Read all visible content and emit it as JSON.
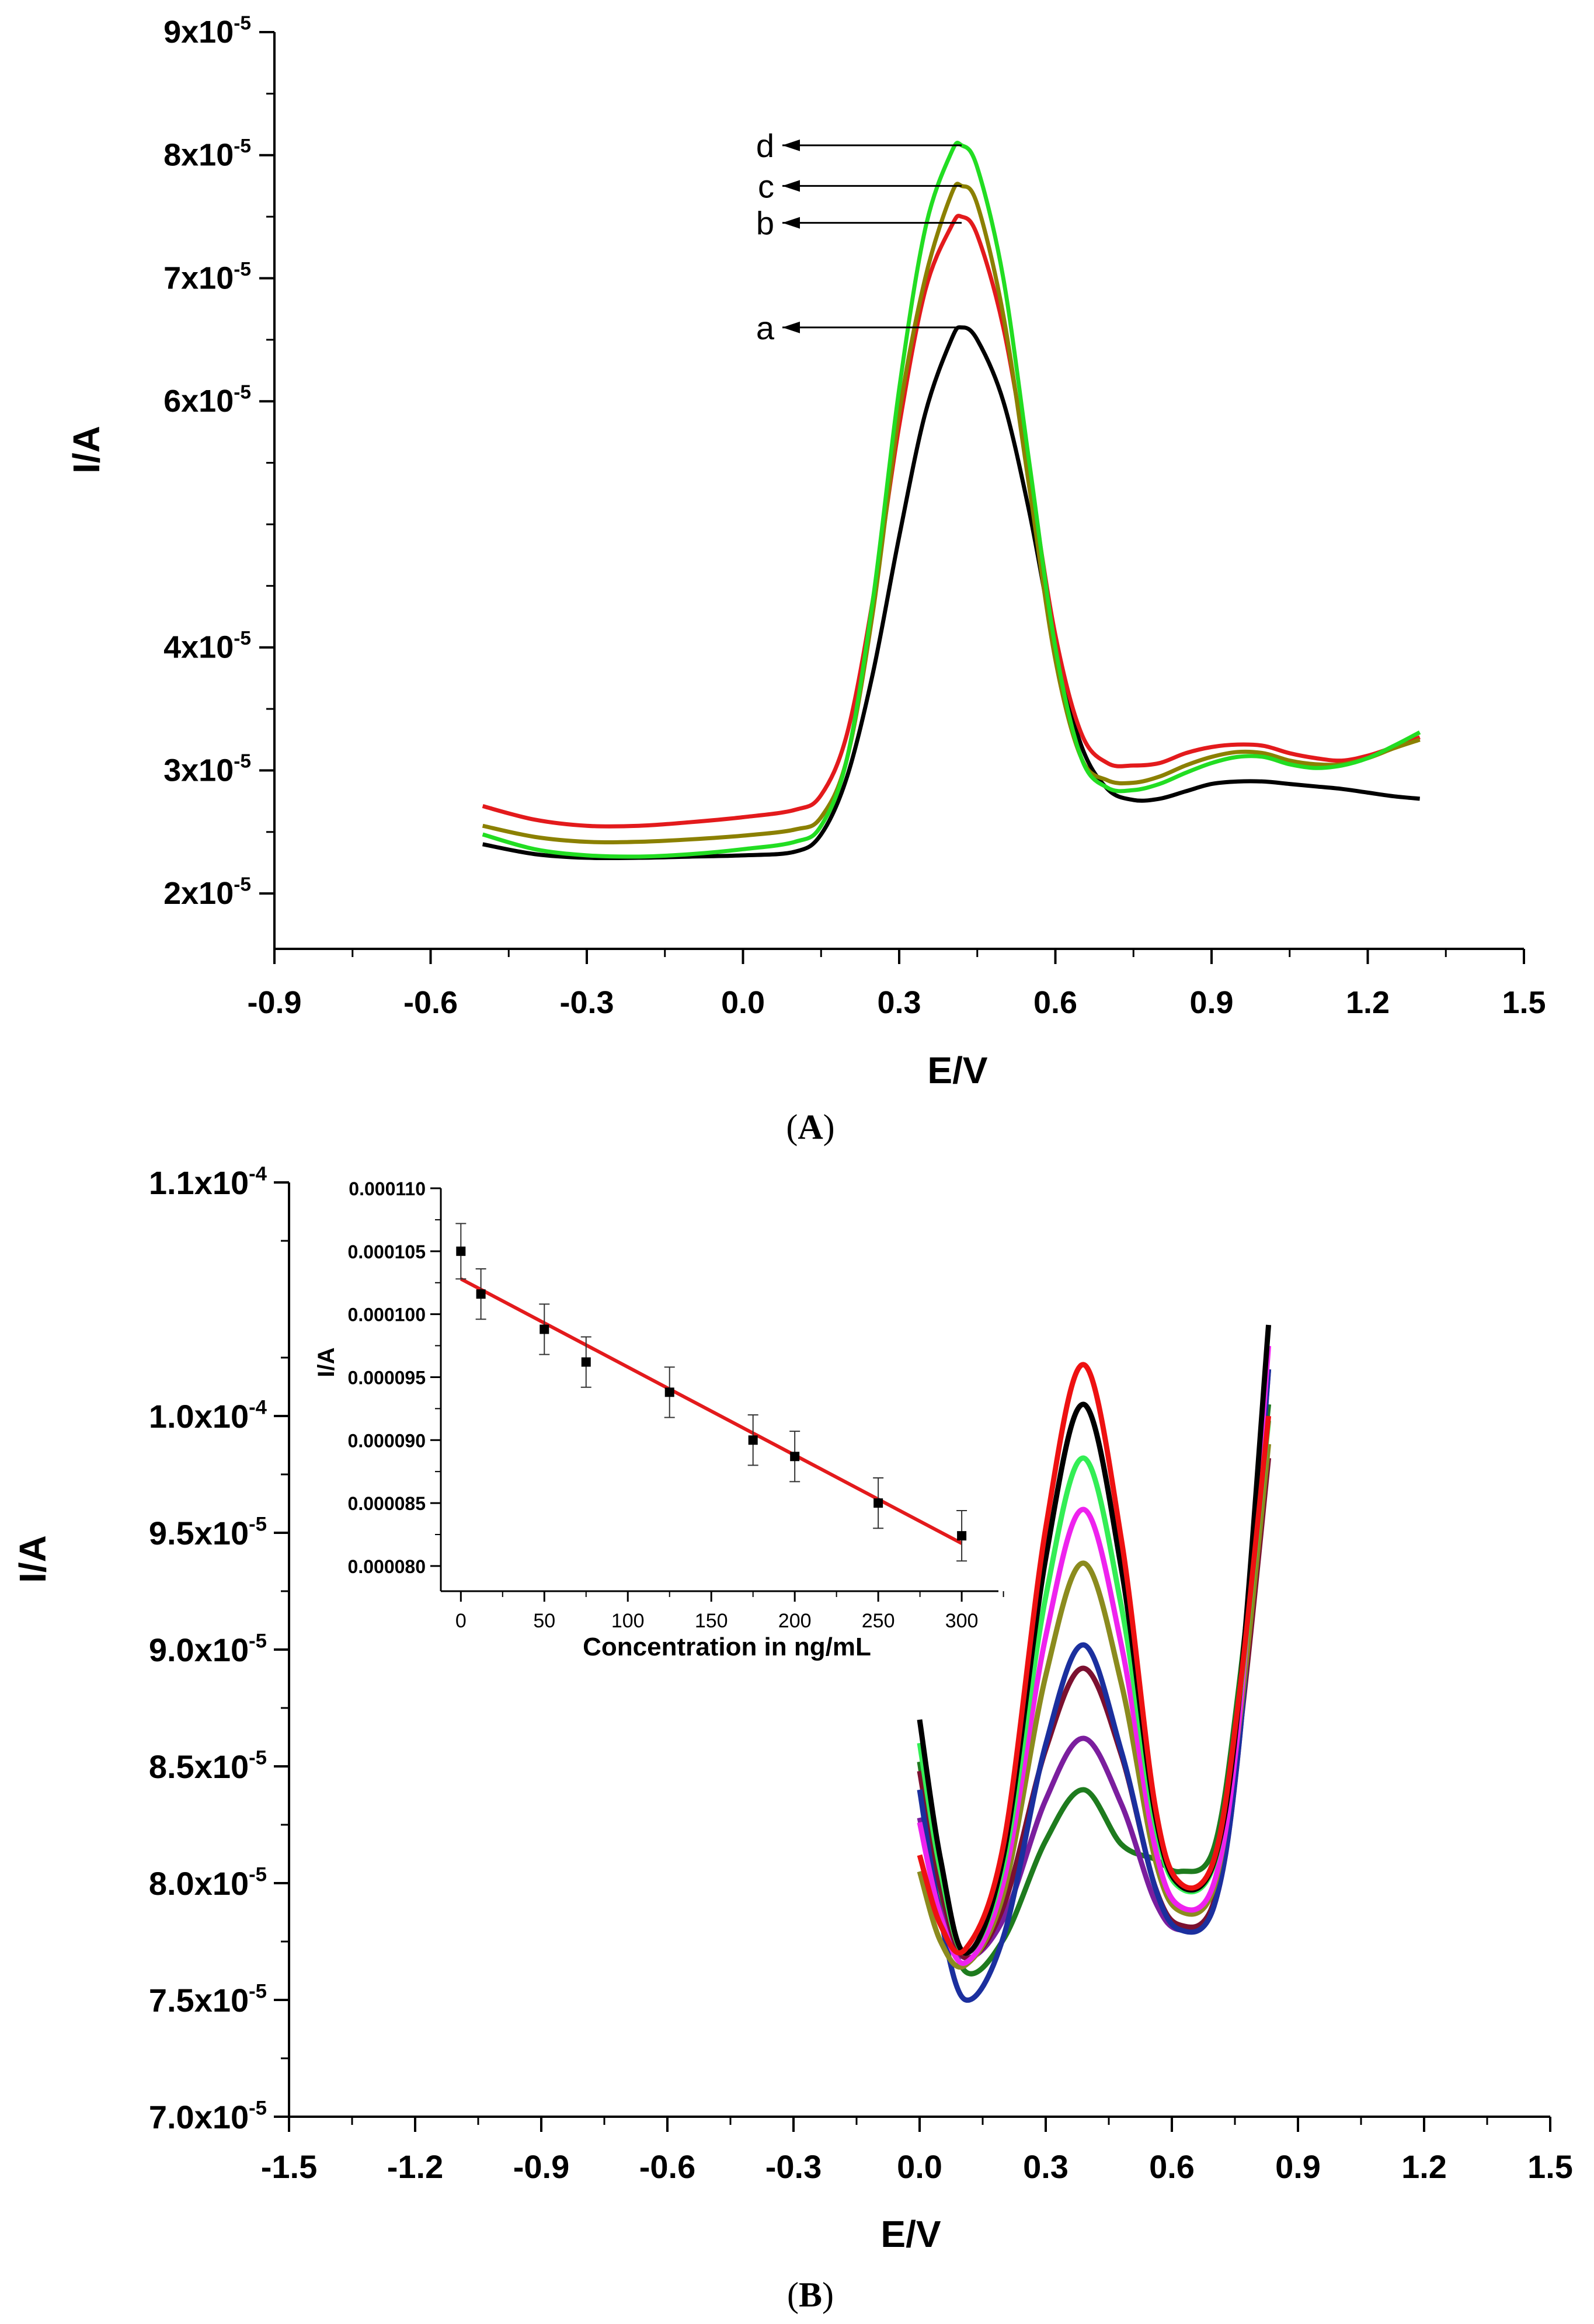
{
  "chart_data": [
    {
      "type": "line",
      "panel_label": "A",
      "xlabel": "E/V",
      "ylabel": "I/A",
      "xlim": [
        -0.9,
        1.5
      ],
      "ylim": [
        1.55e-05,
        9e-05
      ],
      "x_ticks": [
        -0.9,
        -0.6,
        -0.3,
        0.0,
        0.3,
        0.6,
        0.9,
        1.2,
        1.5
      ],
      "x_tick_labels": [
        "-0.9",
        "-0.6",
        "-0.3",
        "0.0",
        "0.3",
        "0.6",
        "0.9",
        "1.2",
        "1.5"
      ],
      "y_ticks": [
        2e-05,
        3e-05,
        4e-05,
        6e-05,
        7e-05,
        8e-05,
        9e-05
      ],
      "y_tick_labels": [
        {
          "mant": "2x10",
          "exp": "-5"
        },
        {
          "mant": "3x10",
          "exp": "-5"
        },
        {
          "mant": "4x10",
          "exp": "-5"
        },
        {
          "mant": "6x10",
          "exp": "-5"
        },
        {
          "mant": "7x10",
          "exp": "-5"
        },
        {
          "mant": "8x10",
          "exp": "-5"
        },
        {
          "mant": "9x10",
          "exp": "-5"
        }
      ],
      "series": [
        {
          "name": "a",
          "color": "#000000",
          "x": [
            -0.5,
            -0.4,
            -0.3,
            -0.2,
            -0.1,
            0.0,
            0.1,
            0.15,
            0.2,
            0.25,
            0.3,
            0.35,
            0.4,
            0.42,
            0.45,
            0.5,
            0.55,
            0.6,
            0.65,
            0.7,
            0.75,
            0.8,
            0.85,
            0.9,
            0.95,
            1.0,
            1.05,
            1.1,
            1.15,
            1.2,
            1.25,
            1.3
          ],
          "y": [
            2.4e-05,
            2.32e-05,
            2.29e-05,
            2.29e-05,
            2.3e-05,
            2.31e-05,
            2.34e-05,
            2.48e-05,
            2.95e-05,
            3.8e-05,
            4.9e-05,
            5.9e-05,
            6.5e-05,
            6.6e-05,
            6.5e-05,
            6e-05,
            5.1e-05,
            4e-05,
            3.2e-05,
            2.85e-05,
            2.76e-05,
            2.77e-05,
            2.83e-05,
            2.89e-05,
            2.91e-05,
            2.91e-05,
            2.89e-05,
            2.87e-05,
            2.85e-05,
            2.82e-05,
            2.79e-05,
            2.77e-05
          ]
        },
        {
          "name": "b",
          "color": "#e31a1c",
          "x": [
            -0.5,
            -0.4,
            -0.3,
            -0.2,
            -0.1,
            0.0,
            0.1,
            0.15,
            0.2,
            0.25,
            0.3,
            0.35,
            0.4,
            0.42,
            0.45,
            0.5,
            0.55,
            0.6,
            0.65,
            0.7,
            0.75,
            0.8,
            0.85,
            0.9,
            0.95,
            1.0,
            1.05,
            1.1,
            1.15,
            1.2,
            1.25,
            1.3
          ],
          "y": [
            2.71e-05,
            2.6e-05,
            2.55e-05,
            2.55e-05,
            2.58e-05,
            2.62e-05,
            2.68e-05,
            2.8e-05,
            3.3e-05,
            4.4e-05,
            5.8e-05,
            6.9e-05,
            7.42e-05,
            7.5e-05,
            7.35e-05,
            6.6e-05,
            5.4e-05,
            4.1e-05,
            3.3e-05,
            3.06e-05,
            3.04e-05,
            3.06e-05,
            3.14e-05,
            3.19e-05,
            3.21e-05,
            3.2e-05,
            3.14e-05,
            3.1e-05,
            3.08e-05,
            3.12e-05,
            3.19e-05,
            3.27e-05
          ]
        },
        {
          "name": "c",
          "color": "#8b8000",
          "x": [
            -0.5,
            -0.4,
            -0.3,
            -0.2,
            -0.1,
            0.0,
            0.1,
            0.15,
            0.2,
            0.25,
            0.3,
            0.35,
            0.4,
            0.42,
            0.45,
            0.5,
            0.55,
            0.6,
            0.65,
            0.7,
            0.75,
            0.8,
            0.85,
            0.9,
            0.95,
            1.0,
            1.05,
            1.1,
            1.15,
            1.2,
            1.25,
            1.3
          ],
          "y": [
            2.55e-05,
            2.46e-05,
            2.42e-05,
            2.42e-05,
            2.44e-05,
            2.47e-05,
            2.52e-05,
            2.62e-05,
            3.1e-05,
            4.3e-05,
            5.9e-05,
            7e-05,
            7.68e-05,
            7.75e-05,
            7.6e-05,
            6.7e-05,
            5.3e-05,
            3.9e-05,
            3.1e-05,
            2.92e-05,
            2.9e-05,
            2.95e-05,
            3.04e-05,
            3.11e-05,
            3.15e-05,
            3.14e-05,
            3.08e-05,
            3.05e-05,
            3.05e-05,
            3.1e-05,
            3.18e-05,
            3.25e-05
          ]
        },
        {
          "name": "d",
          "color": "#22dd22",
          "x": [
            -0.5,
            -0.4,
            -0.3,
            -0.2,
            -0.1,
            0.0,
            0.1,
            0.15,
            0.2,
            0.25,
            0.3,
            0.35,
            0.4,
            0.42,
            0.45,
            0.5,
            0.55,
            0.6,
            0.65,
            0.7,
            0.75,
            0.8,
            0.85,
            0.9,
            0.95,
            1.0,
            1.05,
            1.1,
            1.15,
            1.2,
            1.25,
            1.3
          ],
          "y": [
            2.48e-05,
            2.36e-05,
            2.31e-05,
            2.3e-05,
            2.32e-05,
            2.36e-05,
            2.42e-05,
            2.55e-05,
            3.1e-05,
            4.4e-05,
            6.1e-05,
            7.4e-05,
            8.02e-05,
            8.08e-05,
            7.9e-05,
            7e-05,
            5.5e-05,
            4e-05,
            3.1e-05,
            2.86e-05,
            2.84e-05,
            2.89e-05,
            2.98e-05,
            3.06e-05,
            3.11e-05,
            3.11e-05,
            3.05e-05,
            3.02e-05,
            3.04e-05,
            3.1e-05,
            3.2e-05,
            3.31e-05
          ]
        }
      ],
      "annotations": [
        {
          "label": "d",
          "x": 0.42,
          "y": 8.08e-05
        },
        {
          "label": "c",
          "x": 0.42,
          "y": 7.75e-05
        },
        {
          "label": "b",
          "x": 0.42,
          "y": 7.45e-05
        },
        {
          "label": "a",
          "x": 0.42,
          "y": 6.6e-05
        }
      ]
    },
    {
      "type": "line",
      "panel_label": "B",
      "xlabel": "E/V",
      "ylabel": "I/A",
      "xlim": [
        -1.5,
        1.5
      ],
      "ylim": [
        7e-05,
        0.00011
      ],
      "x_ticks": [
        -1.5,
        -1.2,
        -0.9,
        -0.6,
        -0.3,
        0.0,
        0.3,
        0.6,
        0.9,
        1.2,
        1.5
      ],
      "x_tick_labels": [
        "-1.5",
        "-1.2",
        "-0.9",
        "-0.6",
        "-0.3",
        "0.0",
        "0.3",
        "0.6",
        "0.9",
        "1.2",
        "1.5"
      ],
      "y_ticks": [
        7e-05,
        7.5e-05,
        8e-05,
        8.5e-05,
        9e-05,
        9.5e-05,
        0.0001,
        0.00011
      ],
      "y_tick_labels": [
        {
          "mant": "7.0x10",
          "exp": "-5"
        },
        {
          "mant": "7.5x10",
          "exp": "-5"
        },
        {
          "mant": "8.0x10",
          "exp": "-5"
        },
        {
          "mant": "8.5x10",
          "exp": "-5"
        },
        {
          "mant": "9.0x10",
          "exp": "-5"
        },
        {
          "mant": "9.5x10",
          "exp": "-5"
        },
        {
          "mant": "1.0x10",
          "exp": "-4"
        },
        {
          "mant": "1.1x10",
          "exp": "-4"
        }
      ],
      "series": [
        {
          "name": "dark-green",
          "color": "#1e7b1e",
          "peak": 8.4e-05,
          "min1": 7.62e-05,
          "min2": 8.05e-05
        },
        {
          "name": "purple",
          "color": "#7b1e9e",
          "peak": 8.62e-05,
          "min1": 7.68e-05,
          "min2": 7.8e-05
        },
        {
          "name": "maroon",
          "color": "#7b1030",
          "peak": 8.92e-05,
          "min1": 7.68e-05,
          "min2": 7.82e-05
        },
        {
          "name": "blue",
          "color": "#1b2f9e",
          "peak": 9.02e-05,
          "min1": 7.5e-05,
          "min2": 7.8e-05
        },
        {
          "name": "olive",
          "color": "#8b8b1e",
          "peak": 9.37e-05,
          "min1": 7.65e-05,
          "min2": 7.88e-05
        },
        {
          "name": "magenta",
          "color": "#ee22ee",
          "peak": 9.6e-05,
          "min1": 7.66e-05,
          "min2": 7.9e-05
        },
        {
          "name": "green",
          "color": "#33ee55",
          "peak": 9.82e-05,
          "min1": 7.7e-05,
          "min2": 7.98e-05
        },
        {
          "name": "black",
          "color": "#000000",
          "peak": 0.0001005,
          "min1": 7.7e-05,
          "min2": 7.99e-05
        },
        {
          "name": "red",
          "color": "#ee1111",
          "peak": 0.0001022,
          "min1": 7.72e-05,
          "min2": 8e-05
        }
      ],
      "inset": {
        "type": "scatter",
        "xlabel": "Concentration in ng/mL",
        "ylabel": "I/A",
        "xlim": [
          -12,
          322
        ],
        "ylim": [
          7.8e-05,
          0.00011
        ],
        "x_ticks": [
          0,
          50,
          100,
          150,
          200,
          250,
          300
        ],
        "x_tick_labels": [
          "0",
          "50",
          "100",
          "150",
          "200",
          "250",
          "300"
        ],
        "y_ticks": [
          8e-05,
          8.5e-05,
          9e-05,
          9.5e-05,
          0.0001,
          0.000105,
          0.00011
        ],
        "y_tick_labels": [
          "0.000080",
          "0.000085",
          "0.000090",
          "0.000095",
          "0.000100",
          "0.000105",
          "0.000110"
        ],
        "points": [
          {
            "x": 0,
            "y": 0.000105,
            "err": 2.2e-06
          },
          {
            "x": 12,
            "y": 0.0001016,
            "err": 2e-06
          },
          {
            "x": 50,
            "y": 9.88e-05,
            "err": 2e-06
          },
          {
            "x": 75,
            "y": 9.62e-05,
            "err": 2e-06
          },
          {
            "x": 125,
            "y": 9.38e-05,
            "err": 2e-06
          },
          {
            "x": 175,
            "y": 9e-05,
            "err": 2e-06
          },
          {
            "x": 200,
            "y": 8.87e-05,
            "err": 2e-06
          },
          {
            "x": 250,
            "y": 8.5e-05,
            "err": 2e-06
          },
          {
            "x": 300,
            "y": 8.24e-05,
            "err": 2e-06
          }
        ],
        "fit": {
          "color": "#e31a1c",
          "x": [
            0,
            300
          ],
          "y": [
            0.0001028,
            8.18e-05
          ]
        }
      }
    }
  ]
}
